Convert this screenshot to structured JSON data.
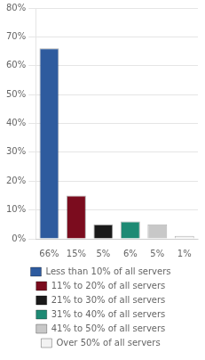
{
  "chart_data": {
    "type": "bar",
    "categories": [
      "66%",
      "15%",
      "5%",
      "6%",
      "5%",
      "1%"
    ],
    "series": [
      {
        "name": "Less than 10% of all servers",
        "color": "#2e5b9e",
        "values": [
          66,
          null,
          null,
          null,
          null,
          null
        ]
      },
      {
        "name": "11% to 20% of all servers",
        "color": "#7b0c1e",
        "values": [
          null,
          15,
          null,
          null,
          null,
          null
        ]
      },
      {
        "name": "21% to 30% of all servers",
        "color": "#1a1a1a",
        "values": [
          null,
          null,
          5,
          null,
          null,
          null
        ]
      },
      {
        "name": "31% to 40% of all servers",
        "color": "#1e8a74",
        "values": [
          null,
          null,
          null,
          6,
          null,
          null
        ]
      },
      {
        "name": "41% to 50% of all servers",
        "color": "#c8c8c8",
        "values": [
          null,
          null,
          null,
          null,
          5,
          null
        ]
      },
      {
        "name": "Over 50% of all servers",
        "color": "#f2f2f2",
        "values": [
          null,
          null,
          null,
          null,
          null,
          1
        ]
      }
    ],
    "ylim": [
      0,
      80
    ],
    "yticks": [
      {
        "value": 0,
        "label": "0%"
      },
      {
        "value": 10,
        "label": "10%"
      },
      {
        "value": 20,
        "label": "20%"
      },
      {
        "value": 30,
        "label": "30%"
      },
      {
        "value": 40,
        "label": "40%"
      },
      {
        "value": 50,
        "label": "50%"
      },
      {
        "value": 60,
        "label": "60%"
      },
      {
        "value": 70,
        "label": "70%"
      },
      {
        "value": 80,
        "label": "80%"
      }
    ],
    "grid": true,
    "legend": "bottom"
  }
}
